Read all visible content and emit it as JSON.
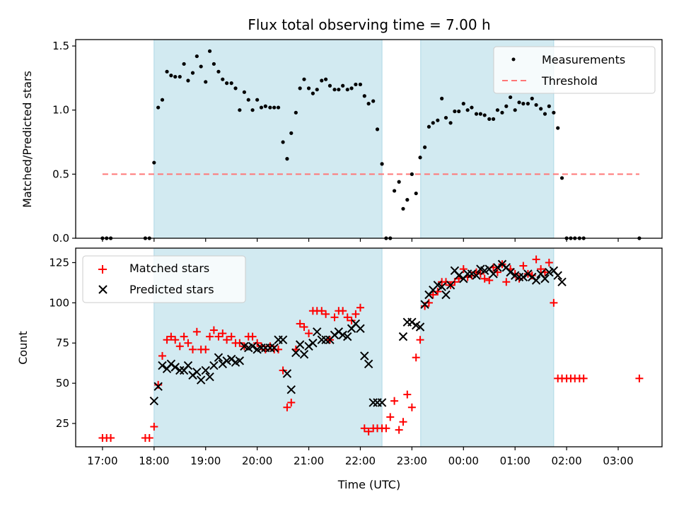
{
  "chart_data": [
    {
      "type": "scatter",
      "title": "Flux total observing time = 7.00 h",
      "xlabel": "",
      "ylabel": "Matched/Predicted stars",
      "ylim": [
        0,
        1.55
      ],
      "yticks": [
        "0.0",
        "0.5",
        "1.0",
        "1.5"
      ],
      "ytick_values": [
        0,
        0.5,
        1.0,
        1.5
      ],
      "xlim": [
        -0.52,
        10.85
      ],
      "grid": false,
      "legend": "top-right",
      "shaded_regions": [
        [
          1.0,
          5.42
        ],
        [
          6.17,
          8.75
        ]
      ],
      "shade_color": "#add8e6",
      "series": [
        {
          "name": "Measurements",
          "marker": "dot",
          "color": "#000000",
          "x": [
            0.0,
            0.08,
            0.16,
            0.83,
            0.91,
            1.0,
            1.08,
            1.16,
            1.25,
            1.33,
            1.41,
            1.5,
            1.58,
            1.66,
            1.75,
            1.83,
            1.91,
            2.0,
            2.08,
            2.16,
            2.25,
            2.33,
            2.41,
            2.5,
            2.58,
            2.66,
            2.75,
            2.83,
            2.91,
            3.0,
            3.08,
            3.16,
            3.25,
            3.33,
            3.41,
            3.5,
            3.58,
            3.66,
            3.75,
            3.83,
            3.91,
            4.0,
            4.08,
            4.16,
            4.25,
            4.33,
            4.41,
            4.5,
            4.58,
            4.66,
            4.75,
            4.83,
            4.91,
            5.0,
            5.08,
            5.16,
            5.25,
            5.33,
            5.42,
            5.5,
            5.58,
            5.66,
            5.75,
            5.83,
            5.91,
            6.0,
            6.08,
            6.16,
            6.25,
            6.33,
            6.41,
            6.5,
            6.58,
            6.66,
            6.75,
            6.83,
            6.91,
            7.0,
            7.08,
            7.16,
            7.25,
            7.33,
            7.41,
            7.5,
            7.58,
            7.66,
            7.75,
            7.83,
            7.91,
            8.0,
            8.08,
            8.16,
            8.25,
            8.33,
            8.41,
            8.5,
            8.58,
            8.66,
            8.75,
            8.83,
            8.91,
            9.0,
            9.08,
            9.16,
            9.25,
            9.33,
            10.41
          ],
          "y": [
            0,
            0,
            0,
            0,
            0,
            0.59,
            1.02,
            1.08,
            1.3,
            1.27,
            1.26,
            1.26,
            1.36,
            1.23,
            1.29,
            1.42,
            1.34,
            1.22,
            1.46,
            1.36,
            1.3,
            1.24,
            1.21,
            1.21,
            1.17,
            1.0,
            1.14,
            1.08,
            1.0,
            1.08,
            1.02,
            1.03,
            1.02,
            1.02,
            1.02,
            0.75,
            0.62,
            0.82,
            0.98,
            1.17,
            1.24,
            1.17,
            1.13,
            1.16,
            1.23,
            1.24,
            1.19,
            1.16,
            1.16,
            1.19,
            1.16,
            1.17,
            1.2,
            1.2,
            1.11,
            1.05,
            1.07,
            0.85,
            0.58,
            0,
            0,
            0.37,
            0.44,
            0.23,
            0.3,
            0.5,
            0.35,
            0.63,
            0.71,
            0.87,
            0.9,
            0.92,
            1.09,
            0.94,
            0.9,
            0.99,
            0.99,
            1.05,
            1.0,
            1.02,
            0.97,
            0.97,
            0.96,
            0.93,
            0.93,
            1.0,
            0.98,
            1.03,
            1.1,
            1.0,
            1.06,
            1.05,
            1.05,
            1.09,
            1.04,
            1.01,
            0.97,
            1.03,
            0.98,
            0.86,
            0.47,
            0,
            0,
            0,
            0,
            0,
            0
          ]
        },
        {
          "name": "Threshold",
          "marker": "dashed-line",
          "color": "#ff7777",
          "x": [
            0.0,
            10.41
          ],
          "y": [
            0.5,
            0.5
          ]
        }
      ]
    },
    {
      "type": "scatter",
      "title": "",
      "xlabel": "Time (UTC)",
      "ylabel": "Count",
      "ylim": [
        10.5,
        134
      ],
      "yticks": [
        "25",
        "50",
        "75",
        "100",
        "125"
      ],
      "ytick_values": [
        25,
        50,
        75,
        100,
        125
      ],
      "xlim": [
        -0.52,
        10.85
      ],
      "xtick_values": [
        0,
        1,
        2,
        3,
        4,
        5,
        6,
        7,
        8,
        9,
        10
      ],
      "categories": [
        "17:00",
        "18:00",
        "19:00",
        "20:00",
        "21:00",
        "22:00",
        "23:00",
        "00:00",
        "01:00",
        "02:00",
        "03:00"
      ],
      "grid": false,
      "legend": "top-left",
      "shaded_regions": [
        [
          1.0,
          5.42
        ],
        [
          6.17,
          8.75
        ]
      ],
      "shade_color": "#add8e6",
      "series": [
        {
          "name": "Matched stars",
          "marker": "plus",
          "color": "#ff0000",
          "x": [
            0.0,
            0.08,
            0.16,
            0.83,
            0.91,
            1.0,
            1.08,
            1.16,
            1.25,
            1.33,
            1.41,
            1.5,
            1.58,
            1.66,
            1.75,
            1.83,
            1.91,
            2.0,
            2.08,
            2.16,
            2.25,
            2.33,
            2.41,
            2.5,
            2.58,
            2.66,
            2.75,
            2.83,
            2.91,
            3.0,
            3.08,
            3.16,
            3.25,
            3.33,
            3.41,
            3.5,
            3.58,
            3.66,
            3.75,
            3.83,
            3.91,
            4.0,
            4.08,
            4.16,
            4.25,
            4.33,
            4.41,
            4.5,
            4.58,
            4.66,
            4.75,
            4.83,
            4.91,
            5.0,
            5.08,
            5.16,
            5.25,
            5.33,
            5.42,
            5.5,
            5.58,
            5.66,
            5.75,
            5.83,
            5.91,
            6.0,
            6.08,
            6.16,
            6.25,
            6.33,
            6.41,
            6.5,
            6.58,
            6.66,
            6.75,
            6.83,
            6.91,
            7.0,
            7.08,
            7.16,
            7.25,
            7.33,
            7.41,
            7.5,
            7.58,
            7.66,
            7.75,
            7.83,
            7.91,
            8.0,
            8.08,
            8.16,
            8.25,
            8.33,
            8.41,
            8.5,
            8.58,
            8.66,
            8.75,
            8.83,
            8.91,
            9.0,
            9.08,
            9.16,
            9.25,
            9.33,
            10.41
          ],
          "y": [
            16,
            16,
            16,
            16,
            16,
            23,
            49,
            67,
            77,
            79,
            77,
            73,
            79,
            75,
            71,
            82,
            71,
            71,
            79,
            83,
            79,
            81,
            77,
            79,
            75,
            75,
            73,
            79,
            79,
            75,
            73,
            71,
            73,
            71,
            71,
            58,
            35,
            38,
            71,
            87,
            85,
            81,
            95,
            95,
            95,
            93,
            77,
            91,
            95,
            95,
            91,
            89,
            93,
            97,
            22,
            20,
            22,
            22,
            22,
            22,
            29,
            39,
            21,
            26,
            43,
            35,
            66,
            77,
            98,
            100,
            105,
            107,
            113,
            113,
            111,
            113,
            115,
            121,
            116,
            117,
            119,
            118,
            115,
            114,
            122,
            119,
            124,
            113,
            121,
            118,
            115,
            123,
            118,
            117,
            127,
            121,
            119,
            125,
            100,
            53,
            53,
            53,
            53,
            53,
            53,
            53,
            53
          ]
        },
        {
          "name": "Predicted stars",
          "marker": "x",
          "color": "#000000",
          "x": [
            1.0,
            1.08,
            1.16,
            1.25,
            1.33,
            1.41,
            1.5,
            1.58,
            1.66,
            1.75,
            1.83,
            1.91,
            2.0,
            2.08,
            2.16,
            2.25,
            2.33,
            2.41,
            2.5,
            2.58,
            2.66,
            2.75,
            2.83,
            2.91,
            3.0,
            3.08,
            3.16,
            3.25,
            3.33,
            3.41,
            3.5,
            3.58,
            3.66,
            3.75,
            3.83,
            3.91,
            4.0,
            4.08,
            4.16,
            4.25,
            4.33,
            4.41,
            4.5,
            4.58,
            4.66,
            4.75,
            4.83,
            4.91,
            5.0,
            5.08,
            5.16,
            5.25,
            5.33,
            5.42,
            5.83,
            5.91,
            6.0,
            6.08,
            6.16,
            6.25,
            6.33,
            6.41,
            6.5,
            6.58,
            6.66,
            6.75,
            6.83,
            6.91,
            7.0,
            7.08,
            7.16,
            7.25,
            7.33,
            7.41,
            7.5,
            7.58,
            7.66,
            7.75,
            7.83,
            7.91,
            8.0,
            8.08,
            8.16,
            8.25,
            8.33,
            8.41,
            8.5,
            8.58,
            8.66,
            8.75,
            8.83,
            8.91
          ],
          "y": [
            39,
            48,
            61,
            59,
            62,
            60,
            58,
            58,
            61,
            55,
            57,
            52,
            58,
            54,
            61,
            66,
            62,
            64,
            65,
            63,
            64,
            73,
            72,
            73,
            71,
            72,
            72,
            72,
            72,
            77,
            77,
            56,
            46,
            69,
            74,
            68,
            73,
            75,
            82,
            77,
            77,
            77,
            80,
            82,
            80,
            79,
            84,
            87,
            84,
            67,
            62,
            38,
            38,
            38,
            79,
            88,
            88,
            86,
            85,
            99,
            105,
            108,
            111,
            110,
            105,
            111,
            120,
            117,
            115,
            118,
            118,
            117,
            121,
            120,
            121,
            118,
            122,
            124,
            122,
            119,
            117,
            116,
            116,
            118,
            116,
            114,
            118,
            115,
            119,
            120,
            117,
            113
          ]
        }
      ]
    }
  ]
}
